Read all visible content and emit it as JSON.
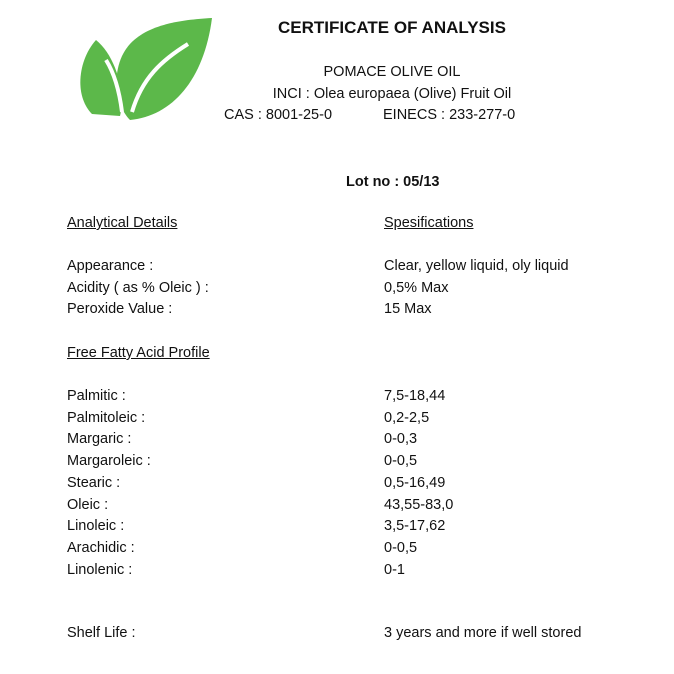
{
  "header": {
    "title": "CERTIFICATE OF ANALYSIS",
    "product": "POMACE OLIVE OIL",
    "inci": "INCI : Olea europaea (Olive) Fruit Oil",
    "cas": "CAS : 8001-25-0",
    "einecs": "EINECS : 233-277-0",
    "lot": "Lot no : 05/13",
    "logo_icon": "green-leaves-logo",
    "logo_color": "#5cb84a"
  },
  "columns": {
    "left": "Analytical Details",
    "right": "Spesifications"
  },
  "analytical": [
    {
      "label": "Appearance :",
      "value": "Clear, yellow liquid, oly liquid"
    },
    {
      "label": "Acidity ( as % Oleic ) :",
      "value": "0,5% Max"
    },
    {
      "label": "Peroxide Value :",
      "value": "15 Max"
    }
  ],
  "fatty_acid_heading": "Free Fatty Acid Profile",
  "fatty_acids": [
    {
      "label": "Palmitic :",
      "value": "7,5-18,44"
    },
    {
      "label": "Palmitoleic :",
      "value": "0,2-2,5"
    },
    {
      "label": "Margaric :",
      "value": "0-0,3"
    },
    {
      "label": "Margaroleic :",
      "value": "0-0,5"
    },
    {
      "label": "Stearic :",
      "value": "0,5-16,49"
    },
    {
      "label": "Oleic :",
      "value": "43,55-83,0"
    },
    {
      "label": "Linoleic :",
      "value": "3,5-17,62"
    },
    {
      "label": "Arachidic :",
      "value": "0-0,5"
    },
    {
      "label": "Linolenic :",
      "value": "0-1"
    }
  ],
  "shelf_life": {
    "label": "Shelf Life :",
    "value": "3 years and more if well stored"
  }
}
